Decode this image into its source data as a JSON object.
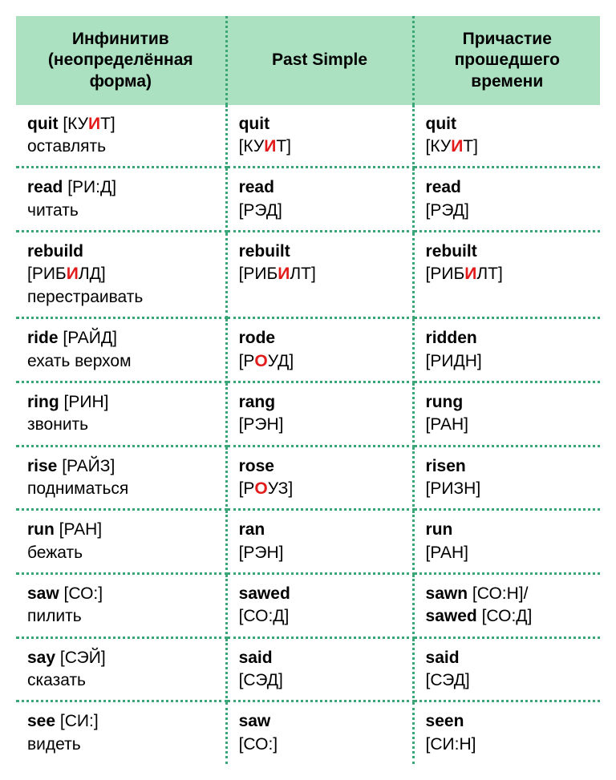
{
  "table": {
    "columns": [
      "Инфинитив (неопределённая форма)",
      "Past Simple",
      "Причастие прошедшего времени"
    ],
    "col_widths": [
      "36%",
      "32%",
      "32%"
    ],
    "header_bg": "#abe0c0",
    "border_color": "#3aa576",
    "stress_color": "#e31b1b",
    "font_size": 21,
    "rows": [
      {
        "inf": {
          "word": "quit",
          "trn": [
            {
              "t": "[КУ"
            },
            {
              "t": "И",
              "s": true
            },
            {
              "t": "Т]"
            }
          ],
          "translation": "оставлять"
        },
        "past": {
          "word": "quit",
          "trn": [
            {
              "t": "[КУ"
            },
            {
              "t": "И",
              "s": true
            },
            {
              "t": "Т]"
            }
          ]
        },
        "pp": {
          "word": "quit",
          "trn": [
            {
              "t": "[КУ"
            },
            {
              "t": "И",
              "s": true
            },
            {
              "t": "Т]"
            }
          ]
        }
      },
      {
        "inf": {
          "word": "read",
          "trn": [
            {
              "t": "[РИ:Д]"
            }
          ],
          "translation": "читать"
        },
        "past": {
          "word": "read",
          "trn": [
            {
              "t": "[РЭД]"
            }
          ]
        },
        "pp": {
          "word": "read",
          "trn": [
            {
              "t": "[РЭД]"
            }
          ]
        }
      },
      {
        "inf": {
          "word": "rebuild",
          "trn": [
            {
              "t": "[РИБ"
            },
            {
              "t": "И",
              "s": true
            },
            {
              "t": "ЛД]"
            }
          ],
          "translation": "перестраивать",
          "trn_break_before": true
        },
        "past": {
          "word": "rebuilt",
          "trn": [
            {
              "t": "[РИБ"
            },
            {
              "t": "И",
              "s": true
            },
            {
              "t": "ЛТ]"
            }
          ]
        },
        "pp": {
          "word": "rebuilt",
          "trn": [
            {
              "t": "[РИБ"
            },
            {
              "t": "И",
              "s": true
            },
            {
              "t": "ЛТ]"
            }
          ]
        }
      },
      {
        "inf": {
          "word": "ride",
          "trn": [
            {
              "t": "[РАЙД]"
            }
          ],
          "translation": "ехать верхом"
        },
        "past": {
          "word": "rode",
          "trn": [
            {
              "t": "[Р"
            },
            {
              "t": "О",
              "s": true
            },
            {
              "t": "УД]"
            }
          ]
        },
        "pp": {
          "word": "ridden",
          "trn": [
            {
              "t": "[РИДН]"
            }
          ]
        }
      },
      {
        "inf": {
          "word": "ring",
          "trn": [
            {
              "t": "[РИН]"
            }
          ],
          "translation": "звонить"
        },
        "past": {
          "word": "rang",
          "trn": [
            {
              "t": "[РЭН]"
            }
          ]
        },
        "pp": {
          "word": "rung",
          "trn": [
            {
              "t": "[РАН]"
            }
          ]
        }
      },
      {
        "inf": {
          "word": "rise",
          "trn": [
            {
              "t": "[РАЙЗ]"
            }
          ],
          "translation": "подниматься"
        },
        "past": {
          "word": "rose",
          "trn": [
            {
              "t": "[Р"
            },
            {
              "t": "О",
              "s": true
            },
            {
              "t": "УЗ]"
            }
          ]
        },
        "pp": {
          "word": "risen",
          "trn": [
            {
              "t": "[РИЗН]"
            }
          ]
        }
      },
      {
        "inf": {
          "word": "run",
          "trn": [
            {
              "t": "[РАН]"
            }
          ],
          "translation": "бежать"
        },
        "past": {
          "word": "ran",
          "trn": [
            {
              "t": "[РЭН]"
            }
          ]
        },
        "pp": {
          "word": "run",
          "trn": [
            {
              "t": "[РАН]"
            }
          ]
        }
      },
      {
        "inf": {
          "word": "saw",
          "trn": [
            {
              "t": "[СО:]"
            }
          ],
          "translation": "пилить"
        },
        "past": {
          "word": "sawed",
          "trn": [
            {
              "t": "[СО:Д]"
            }
          ]
        },
        "pp": {
          "word": "sawn",
          "trn": [
            {
              "t": "[СО:Н]/"
            }
          ],
          "extra_word": "sawed",
          "extra_trn": [
            {
              "t": "[СО:Д]"
            }
          ]
        }
      },
      {
        "inf": {
          "word": "say",
          "trn": [
            {
              "t": "[СЭЙ]"
            }
          ],
          "translation": "сказать"
        },
        "past": {
          "word": "said",
          "trn": [
            {
              "t": "[СЭД]"
            }
          ]
        },
        "pp": {
          "word": "said",
          "trn": [
            {
              "t": "[СЭД]"
            }
          ]
        }
      },
      {
        "inf": {
          "word": "see",
          "trn": [
            {
              "t": "[СИ:]"
            }
          ],
          "translation": "видеть"
        },
        "past": {
          "word": "saw",
          "trn": [
            {
              "t": "[СО:]"
            }
          ]
        },
        "pp": {
          "word": "seen",
          "trn": [
            {
              "t": "[СИ:Н]"
            }
          ]
        }
      }
    ]
  }
}
